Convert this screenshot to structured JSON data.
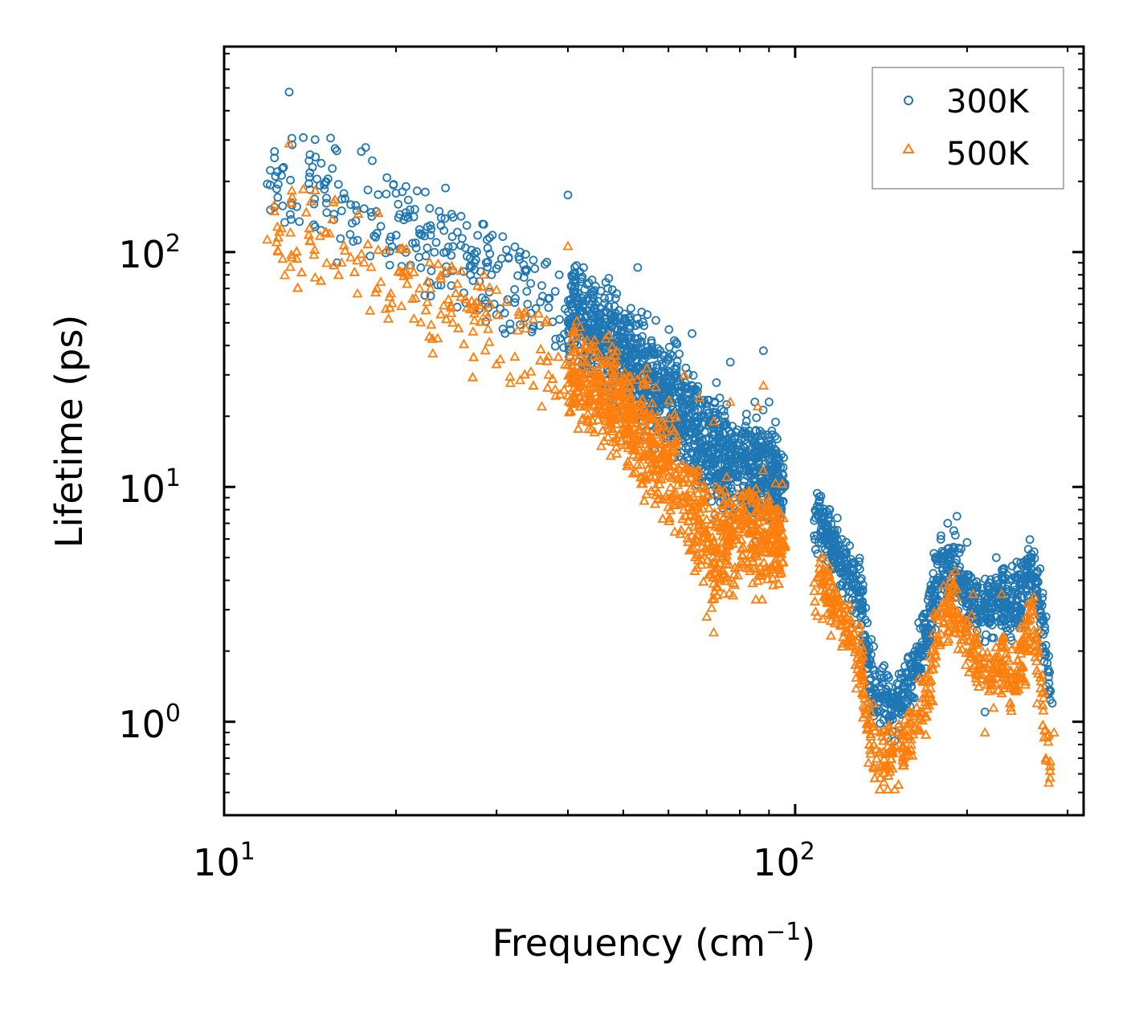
{
  "chart_data": {
    "type": "scatter",
    "xscale": "log",
    "yscale": "log",
    "xlabel": "Frequency (cm",
    "xlabel_sup": "−1",
    "xlabel_close": ")",
    "ylabel": "Lifetime (ps)",
    "xlim": [
      10,
      320
    ],
    "ylim": [
      0.4,
      750
    ],
    "x_ticks": [
      {
        "value": 10,
        "base": "10",
        "exp": "1"
      },
      {
        "value": 100,
        "base": "10",
        "exp": "2"
      }
    ],
    "y_ticks": [
      {
        "value": 1,
        "base": "10",
        "exp": "0"
      },
      {
        "value": 10,
        "base": "10",
        "exp": "1"
      },
      {
        "value": 100,
        "base": "10",
        "exp": "2"
      }
    ],
    "legend": {
      "position": "top-right"
    },
    "series": [
      {
        "name": "300K",
        "marker": "circle",
        "color": "#1f77b4",
        "trend": [
          [
            12,
            200
          ],
          [
            15,
            180
          ],
          [
            20,
            140
          ],
          [
            25,
            100
          ],
          [
            30,
            78
          ],
          [
            35,
            68
          ],
          [
            40,
            55
          ],
          [
            45,
            45
          ],
          [
            50,
            37
          ],
          [
            55,
            30
          ],
          [
            60,
            25
          ],
          [
            65,
            20
          ],
          [
            70,
            15
          ],
          [
            75,
            12.5
          ],
          [
            80,
            12
          ],
          [
            85,
            11.5
          ],
          [
            90,
            11
          ],
          [
            95,
            10.5
          ],
          [
            110,
            7
          ],
          [
            120,
            5
          ],
          [
            130,
            3.5
          ],
          [
            135,
            1.6
          ],
          [
            140,
            1.2
          ],
          [
            150,
            1.2
          ],
          [
            160,
            1.5
          ],
          [
            170,
            2.5
          ],
          [
            180,
            4.5
          ],
          [
            190,
            4.5
          ],
          [
            200,
            3.5
          ],
          [
            210,
            3.0
          ],
          [
            220,
            3.2
          ],
          [
            230,
            3.5
          ],
          [
            240,
            3.0
          ],
          [
            250,
            3.5
          ],
          [
            260,
            4.5
          ],
          [
            270,
            3.0
          ],
          [
            280,
            1.2
          ]
        ],
        "points": [
          [
            13.0,
            480
          ],
          [
            12.3,
            210
          ],
          [
            12.4,
            220
          ],
          [
            11.9,
            195
          ],
          [
            15.2,
            205
          ],
          [
            17.0,
            158
          ],
          [
            20.0,
            178
          ],
          [
            22.5,
            180
          ],
          [
            20.2,
            140
          ],
          [
            21.0,
            140
          ],
          [
            24.0,
            140
          ],
          [
            26.0,
            142
          ],
          [
            29.5,
            118
          ],
          [
            23.0,
            118
          ],
          [
            22.0,
            120
          ],
          [
            24.5,
            100
          ],
          [
            21.2,
            88
          ],
          [
            19.5,
            88
          ],
          [
            27.0,
            80
          ],
          [
            30.0,
            85
          ],
          [
            31.5,
            95
          ],
          [
            33.0,
            100
          ],
          [
            35.0,
            85
          ],
          [
            40.0,
            175
          ],
          [
            25.0,
            72
          ],
          [
            28.0,
            75
          ],
          [
            33.5,
            78
          ],
          [
            36.0,
            72
          ],
          [
            38.0,
            68
          ],
          [
            41.0,
            68
          ],
          [
            23.0,
            65
          ],
          [
            29.0,
            58
          ],
          [
            31.0,
            55
          ],
          [
            34.0,
            60
          ],
          [
            37.0,
            58
          ],
          [
            44.0,
            60
          ],
          [
            47.0,
            70
          ],
          [
            53.0,
            86
          ],
          [
            50.0,
            48
          ],
          [
            56.0,
            42
          ],
          [
            58.0,
            38
          ],
          [
            66.0,
            45
          ],
          [
            62.0,
            30
          ],
          [
            65.0,
            25
          ],
          [
            70.0,
            22
          ],
          [
            75.0,
            21
          ],
          [
            77.0,
            34
          ],
          [
            85.0,
            23
          ],
          [
            88.0,
            38
          ],
          [
            90.0,
            23
          ],
          [
            86.0,
            15
          ],
          [
            93.0,
            16
          ],
          [
            110.0,
            8.6
          ],
          [
            115.0,
            8.0
          ],
          [
            108.0,
            6.2
          ],
          [
            125.0,
            4.2
          ],
          [
            130.0,
            4.0
          ],
          [
            135.0,
            1.5
          ],
          [
            145.0,
            1.3
          ],
          [
            155.0,
            1.4
          ],
          [
            180.0,
            6.2
          ],
          [
            185.0,
            7.0
          ],
          [
            192.0,
            7.5
          ],
          [
            200.0,
            5.8
          ],
          [
            215.0,
            1.1
          ],
          [
            225.0,
            5.0
          ],
          [
            240.0,
            4.6
          ],
          [
            262.0,
            5.3
          ],
          [
            275.0,
            2.8
          ],
          [
            282.0,
            1.2
          ]
        ]
      },
      {
        "name": "500K",
        "marker": "triangle",
        "color": "#ff7f0e",
        "trend": [
          [
            12,
            118
          ],
          [
            15,
            110
          ],
          [
            20,
            80
          ],
          [
            25,
            60
          ],
          [
            30,
            48
          ],
          [
            35,
            38
          ],
          [
            40,
            32
          ],
          [
            45,
            26
          ],
          [
            50,
            21
          ],
          [
            55,
            16
          ],
          [
            60,
            12.5
          ],
          [
            65,
            9
          ],
          [
            70,
            6.5
          ],
          [
            72,
            4.5
          ],
          [
            75,
            6
          ],
          [
            80,
            6.5
          ],
          [
            85,
            6.5
          ],
          [
            90,
            6.0
          ],
          [
            95,
            5.8
          ],
          [
            110,
            3.8
          ],
          [
            120,
            3.0
          ],
          [
            130,
            1.8
          ],
          [
            135,
            0.9
          ],
          [
            140,
            0.7
          ],
          [
            150,
            0.75
          ],
          [
            160,
            0.85
          ],
          [
            170,
            1.3
          ],
          [
            180,
            2.7
          ],
          [
            190,
            3.2
          ],
          [
            200,
            2.2
          ],
          [
            210,
            1.8
          ],
          [
            220,
            1.6
          ],
          [
            230,
            1.8
          ],
          [
            240,
            1.5
          ],
          [
            250,
            1.9
          ],
          [
            260,
            2.8
          ],
          [
            270,
            1.4
          ],
          [
            280,
            0.6
          ]
        ],
        "points": [
          [
            13.0,
            290
          ],
          [
            12.4,
            128
          ],
          [
            12.5,
            122
          ],
          [
            11.9,
            113
          ],
          [
            15.3,
            120
          ],
          [
            17.1,
            92
          ],
          [
            20.3,
            103
          ],
          [
            20.5,
            82
          ],
          [
            21.0,
            80
          ],
          [
            22.0,
            70
          ],
          [
            23.0,
            70
          ],
          [
            25.0,
            55
          ],
          [
            19.4,
            52
          ],
          [
            21.5,
            52
          ],
          [
            23.2,
            37
          ],
          [
            26.0,
            83
          ],
          [
            29.0,
            47
          ],
          [
            30.0,
            69
          ],
          [
            33.5,
            55
          ],
          [
            40.0,
            106
          ],
          [
            42.0,
            48
          ],
          [
            37.0,
            30
          ],
          [
            38.0,
            26
          ],
          [
            36.0,
            22
          ],
          [
            40.5,
            21
          ],
          [
            44.0,
            40
          ],
          [
            55.0,
            32
          ],
          [
            64.0,
            30
          ],
          [
            68.0,
            24
          ],
          [
            72.0,
            19
          ],
          [
            77.0,
            23
          ],
          [
            88.0,
            27
          ],
          [
            86.0,
            22
          ],
          [
            72.0,
            2.4
          ],
          [
            70.0,
            2.8
          ],
          [
            75.0,
            3.5
          ],
          [
            90.0,
            8
          ],
          [
            108.0,
            3.6
          ],
          [
            112.0,
            5.0
          ],
          [
            125.0,
            2.2
          ],
          [
            132.0,
            1.5
          ],
          [
            135.0,
            0.8
          ],
          [
            140.0,
            0.62
          ],
          [
            155.0,
            0.7
          ],
          [
            182.0,
            3.8
          ],
          [
            188.0,
            4.2
          ],
          [
            205.0,
            3.5
          ],
          [
            215.0,
            0.9
          ],
          [
            230.0,
            3.5
          ],
          [
            262.0,
            3.4
          ],
          [
            278.0,
            0.55
          ],
          [
            284.0,
            0.9
          ]
        ]
      }
    ]
  }
}
